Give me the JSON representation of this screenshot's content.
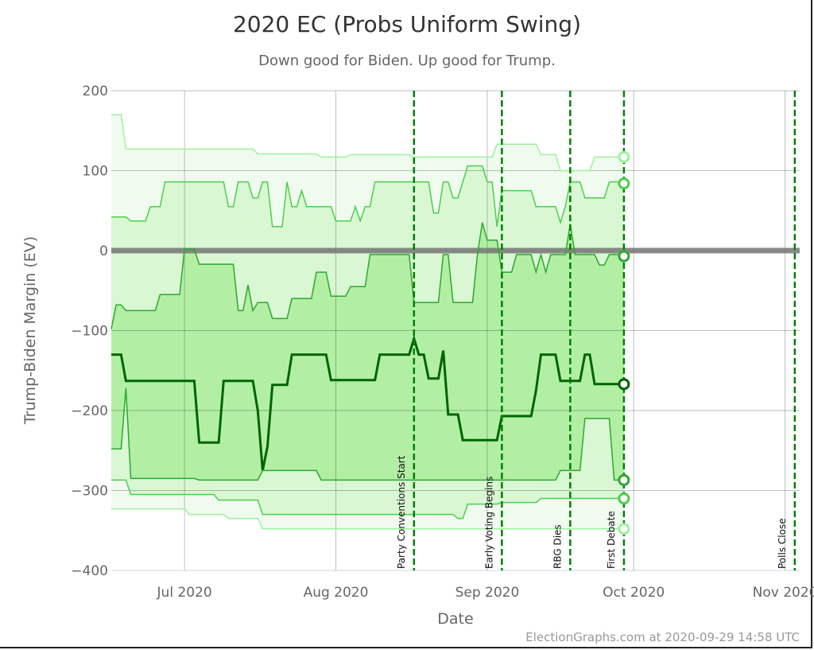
{
  "chart_data": {
    "type": "area",
    "title": "2020 EC (Probs Uniform Swing)",
    "subtitle": "Down good for Biden. Up good for Trump.",
    "xlabel": "Date",
    "ylabel": "Trump-Biden Margin (EV)",
    "xlim": [
      "2020-06-16",
      "2020-11-04"
    ],
    "ylim": [
      -400,
      200
    ],
    "yticks": [
      200,
      100,
      0,
      -100,
      -200,
      -300,
      -400
    ],
    "yticklabels": [
      "200",
      "100",
      "0",
      "−100",
      "−200",
      "−300",
      "−400"
    ],
    "xticks": [
      {
        "date": "2020-07-01",
        "label": "Jul 2020"
      },
      {
        "date": "2020-08-01",
        "label": "Aug 2020"
      },
      {
        "date": "2020-09-01",
        "label": "Sep 2020"
      },
      {
        "date": "2020-10-01",
        "label": "Oct 2020"
      },
      {
        "date": "2020-11-01",
        "label": "Nov 2020"
      }
    ],
    "grid": true,
    "events": [
      {
        "date": "2020-08-17",
        "label": "Party Conventions Start"
      },
      {
        "date": "2020-09-04",
        "label": "Early Voting Begins"
      },
      {
        "date": "2020-09-18",
        "label": "RBG Dies"
      },
      {
        "date": "2020-09-29",
        "label": "First Debate"
      },
      {
        "date": "2020-11-03",
        "label": "Polls Close"
      }
    ],
    "colors": {
      "outer_fill": "#f0fbef",
      "middle_fill": "#d9f7d3",
      "inner_fill": "#b2efa5",
      "outer_line": "#9cf29c",
      "middle_line": "#4ccf4c",
      "inner_line": "#2ea82e",
      "median_line": "#006400",
      "event_line": "#008000",
      "zero_line": "#777777"
    },
    "series": [
      {
        "key": "upper_outer",
        "points": [
          [
            "2020-06-16",
            170
          ],
          [
            "2020-06-19",
            127
          ],
          [
            "2020-07-16",
            121
          ],
          [
            "2020-07-29",
            117
          ],
          [
            "2020-08-04",
            120
          ],
          [
            "2020-08-17",
            117
          ],
          [
            "2020-09-03",
            133
          ],
          [
            "2020-09-12",
            120
          ],
          [
            "2020-09-16",
            100
          ],
          [
            "2020-09-23",
            117
          ],
          [
            "2020-09-29",
            117
          ]
        ]
      },
      {
        "key": "upper_middle",
        "points": [
          [
            "2020-06-16",
            42
          ],
          [
            "2020-06-20",
            37
          ],
          [
            "2020-06-24",
            55
          ],
          [
            "2020-06-27",
            86
          ],
          [
            "2020-07-10",
            55
          ],
          [
            "2020-07-12",
            86
          ],
          [
            "2020-07-15",
            66
          ],
          [
            "2020-07-17",
            86
          ],
          [
            "2020-07-19",
            30
          ],
          [
            "2020-07-22",
            86
          ],
          [
            "2020-07-23",
            55
          ],
          [
            "2020-07-25",
            75
          ],
          [
            "2020-07-26",
            55
          ],
          [
            "2020-08-01",
            37
          ],
          [
            "2020-08-05",
            55
          ],
          [
            "2020-08-06",
            37
          ],
          [
            "2020-08-07",
            55
          ],
          [
            "2020-08-09",
            86
          ],
          [
            "2020-08-21",
            47
          ],
          [
            "2020-08-23",
            86
          ],
          [
            "2020-08-25",
            66
          ],
          [
            "2020-08-27",
            86
          ],
          [
            "2020-08-28",
            106
          ],
          [
            "2020-09-01",
            86
          ],
          [
            "2020-09-03",
            30
          ],
          [
            "2020-09-04",
            75
          ],
          [
            "2020-09-11",
            55
          ],
          [
            "2020-09-16",
            35
          ],
          [
            "2020-09-17",
            55
          ],
          [
            "2020-09-18",
            86
          ],
          [
            "2020-09-21",
            66
          ],
          [
            "2020-09-26",
            86
          ],
          [
            "2020-09-29",
            84
          ]
        ]
      },
      {
        "key": "upper_inner",
        "points": [
          [
            "2020-06-16",
            -98
          ],
          [
            "2020-06-17",
            -68
          ],
          [
            "2020-06-19",
            -75
          ],
          [
            "2020-06-26",
            -55
          ],
          [
            "2020-07-01",
            2
          ],
          [
            "2020-07-04",
            -17
          ],
          [
            "2020-07-12",
            -75
          ],
          [
            "2020-07-14",
            -43
          ],
          [
            "2020-07-15",
            -75
          ],
          [
            "2020-07-16",
            -65
          ],
          [
            "2020-07-19",
            -85
          ],
          [
            "2020-07-23",
            -60
          ],
          [
            "2020-07-28",
            -27
          ],
          [
            "2020-07-31",
            -57
          ],
          [
            "2020-08-04",
            -45
          ],
          [
            "2020-08-08",
            -5
          ],
          [
            "2020-08-17",
            -65
          ],
          [
            "2020-08-23",
            -5
          ],
          [
            "2020-08-25",
            -65
          ],
          [
            "2020-08-30",
            -5
          ],
          [
            "2020-08-31",
            35
          ],
          [
            "2020-09-01",
            13
          ],
          [
            "2020-09-04",
            -27
          ],
          [
            "2020-09-07",
            -5
          ],
          [
            "2020-09-11",
            -27
          ],
          [
            "2020-09-12",
            -5
          ],
          [
            "2020-09-13",
            -27
          ],
          [
            "2020-09-14",
            -5
          ],
          [
            "2020-09-18",
            33
          ],
          [
            "2020-09-19",
            -5
          ],
          [
            "2020-09-24",
            -18
          ],
          [
            "2020-09-26",
            -5
          ],
          [
            "2020-09-29",
            -7
          ]
        ]
      },
      {
        "key": "median",
        "points": [
          [
            "2020-06-16",
            -130
          ],
          [
            "2020-06-19",
            -163
          ],
          [
            "2020-07-04",
            -240
          ],
          [
            "2020-07-09",
            -163
          ],
          [
            "2020-07-16",
            -200
          ],
          [
            "2020-07-17",
            -275
          ],
          [
            "2020-07-18",
            -245
          ],
          [
            "2020-07-19",
            -168
          ],
          [
            "2020-07-23",
            -130
          ],
          [
            "2020-07-31",
            -162
          ],
          [
            "2020-08-10",
            -130
          ],
          [
            "2020-08-17",
            -110
          ],
          [
            "2020-08-18",
            -130
          ],
          [
            "2020-08-20",
            -160
          ],
          [
            "2020-08-23",
            -125
          ],
          [
            "2020-08-24",
            -205
          ],
          [
            "2020-08-27",
            -237
          ],
          [
            "2020-09-04",
            -207
          ],
          [
            "2020-09-11",
            -175
          ],
          [
            "2020-09-12",
            -130
          ],
          [
            "2020-09-16",
            -163
          ],
          [
            "2020-09-21",
            -130
          ],
          [
            "2020-09-23",
            -167
          ],
          [
            "2020-09-29",
            -167
          ]
        ]
      },
      {
        "key": "lower_inner",
        "points": [
          [
            "2020-06-16",
            -248
          ],
          [
            "2020-06-19",
            -172
          ],
          [
            "2020-06-20",
            -285
          ],
          [
            "2020-07-04",
            -287
          ],
          [
            "2020-07-17",
            -275
          ],
          [
            "2020-07-29",
            -287
          ],
          [
            "2020-09-16",
            -275
          ],
          [
            "2020-09-21",
            -210
          ],
          [
            "2020-09-27",
            -287
          ],
          [
            "2020-09-29",
            -287
          ]
        ]
      },
      {
        "key": "lower_middle",
        "points": [
          [
            "2020-06-16",
            -287
          ],
          [
            "2020-06-20",
            -305
          ],
          [
            "2020-07-08",
            -312
          ],
          [
            "2020-07-17",
            -330
          ],
          [
            "2020-08-26",
            -335
          ],
          [
            "2020-08-28",
            -317
          ],
          [
            "2020-09-04",
            -315
          ],
          [
            "2020-09-12",
            -310
          ],
          [
            "2020-09-29",
            -310
          ]
        ]
      },
      {
        "key": "lower_outer",
        "points": [
          [
            "2020-06-16",
            -323
          ],
          [
            "2020-07-02",
            -330
          ],
          [
            "2020-07-10",
            -335
          ],
          [
            "2020-07-17",
            -348
          ],
          [
            "2020-09-29",
            -348
          ]
        ]
      }
    ]
  },
  "credit": "ElectionGraphs.com at 2020-09-29 14:58 UTC"
}
